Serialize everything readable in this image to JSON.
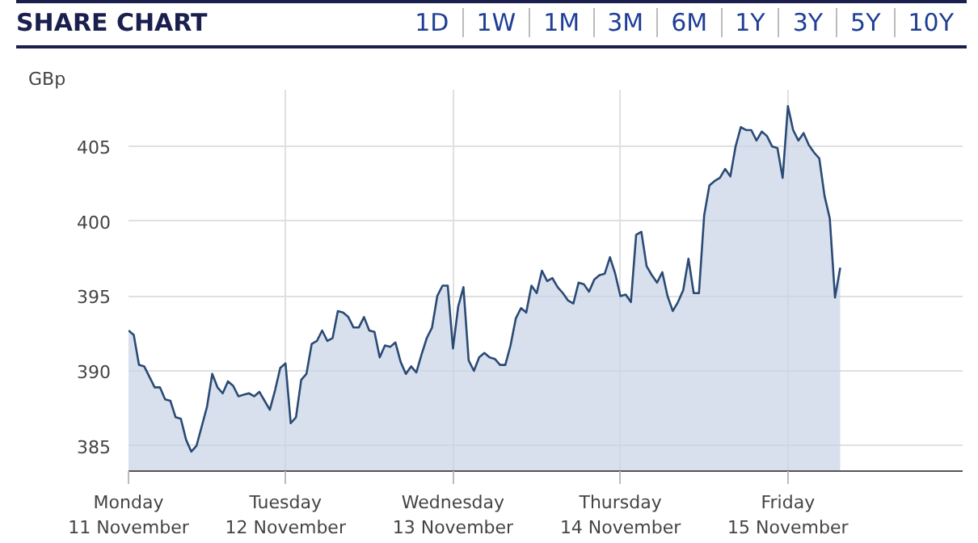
{
  "chart_data": {
    "type": "area",
    "title": "SHARE CHART",
    "annotations": [
      "1D",
      "1W",
      "1M",
      "3M",
      "6M",
      "1Y",
      "3Y",
      "5Y",
      "10Y"
    ],
    "ylabel": "GBp",
    "ylim": [
      383.3,
      408.8
    ],
    "categories": [
      "Monday\n11 November",
      null,
      null,
      null,
      null,
      null,
      null,
      null,
      null,
      null,
      null,
      null,
      null,
      null,
      null,
      null,
      null,
      null,
      null,
      null,
      null,
      null,
      null,
      null,
      null,
      null,
      null,
      null,
      null,
      null,
      "Tuesday\n12 November",
      null,
      null,
      null,
      null,
      null,
      null,
      null,
      null,
      null,
      null,
      null,
      null,
      null,
      null,
      null,
      null,
      null,
      null,
      null,
      null,
      null,
      null,
      null,
      null,
      null,
      null,
      null,
      null,
      null,
      null,
      null,
      "Wednesday\n13 November",
      null,
      null,
      null,
      null,
      null,
      null,
      null,
      null,
      null,
      null,
      null,
      null,
      null,
      null,
      null,
      null,
      null,
      null,
      null,
      null,
      null,
      null,
      null,
      null,
      null,
      null,
      null,
      null,
      null,
      null,
      null,
      "Thursday\n14 November",
      null,
      null,
      null,
      null,
      null,
      null,
      null,
      null,
      null,
      null,
      null,
      null,
      null,
      null,
      null,
      null,
      null,
      null,
      null,
      null,
      null,
      null,
      null,
      null,
      null,
      null,
      null,
      null,
      null,
      null,
      null,
      "Friday\n15 November",
      null,
      null,
      null,
      null,
      null,
      null,
      null,
      null,
      null,
      null
    ],
    "yticks": [
      385,
      390,
      395,
      400,
      405
    ],
    "grid": true,
    "series": [
      {
        "color": "#2a4a75",
        "values": [
          392.7,
          392.4,
          390.4,
          390.3,
          389.6,
          388.9,
          388.9,
          388.1,
          388.0,
          386.9,
          386.8,
          385.4,
          384.6,
          385.0,
          386.3,
          387.6,
          389.8,
          388.9,
          388.5,
          389.3,
          389.0,
          388.3,
          388.4,
          388.5,
          388.3,
          388.6,
          388.0,
          387.4,
          388.7,
          390.2,
          390.5,
          386.5,
          386.9,
          389.4,
          389.8,
          391.8,
          392.0,
          392.7,
          392.0,
          392.2,
          394.0,
          393.9,
          393.6,
          392.9,
          392.9,
          393.6,
          392.7,
          392.6,
          390.9,
          391.7,
          391.6,
          391.9,
          390.6,
          389.8,
          390.3,
          389.9,
          391.1,
          392.2,
          392.9,
          395.0,
          395.7,
          395.7,
          391.5,
          394.3,
          395.6,
          390.7,
          390.0,
          390.9,
          391.2,
          390.9,
          390.8,
          390.4,
          390.4,
          391.7,
          393.5,
          394.2,
          393.9,
          395.7,
          395.2,
          396.7,
          396.0,
          396.2,
          395.6,
          395.2,
          394.7,
          394.5,
          395.9,
          395.8,
          395.3,
          396.1,
          396.4,
          396.5,
          397.6,
          396.5,
          395.0,
          395.1,
          394.6,
          399.1,
          399.3,
          397.0,
          396.4,
          395.9,
          396.6,
          395.0,
          394.0,
          394.6,
          395.4,
          397.5,
          395.2,
          395.2,
          400.4,
          402.4,
          402.7,
          402.9,
          403.5,
          403.0,
          405.0,
          406.3,
          406.1,
          406.1,
          405.4,
          406.0,
          405.7,
          405.0,
          404.9,
          402.9,
          407.7,
          406.1,
          405.4,
          405.9,
          405.1,
          404.6,
          404.2,
          401.7,
          400.2,
          394.9,
          396.9
        ]
      }
    ]
  }
}
